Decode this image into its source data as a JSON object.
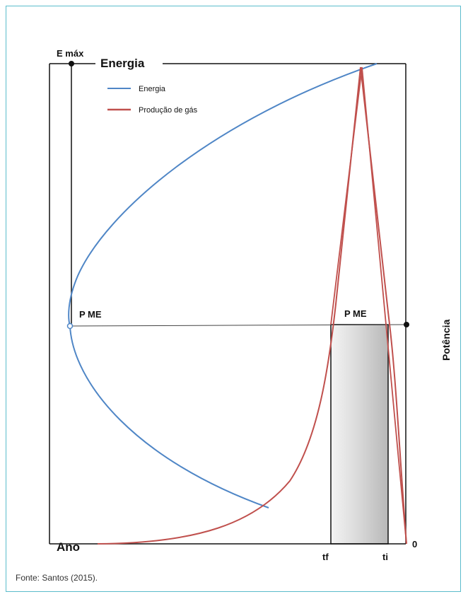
{
  "diagram": {
    "labels": {
      "e_max": "E máx",
      "energia": "Energia",
      "ano": "Ano",
      "potencia": "Potência",
      "pme_left": "P ME",
      "pme_right": "P ME",
      "tf": "tf",
      "ti": "ti",
      "zero": "0"
    },
    "legend": [
      {
        "label": "Energia",
        "color": "#4f86c6"
      },
      {
        "label": "Produção de gás",
        "color": "#c0504d"
      }
    ],
    "colors": {
      "energy_curve": "#4f86c6",
      "gas_curve": "#c0504d",
      "axis": "#111111",
      "frame_border": "#5bbccc"
    }
  },
  "footer": {
    "source": "Fonte: Santos (2015)."
  }
}
